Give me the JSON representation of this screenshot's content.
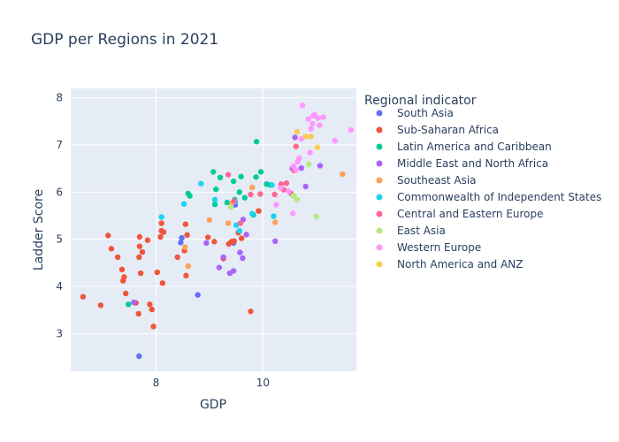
{
  "chart_data": {
    "type": "scatter",
    "title": "GDP per Regions in 2021",
    "xlabel": "GDP",
    "ylabel": "Ladder Score",
    "xlim": [
      6.4,
      11.75
    ],
    "ylim": [
      2.2,
      8.2
    ],
    "x_ticks": [
      8,
      10
    ],
    "y_ticks": [
      3,
      4,
      5,
      6,
      7,
      8
    ],
    "grid": true,
    "legend_title": "Regional indicator",
    "legend_position": "right",
    "series": [
      {
        "name": "South Asia",
        "color": "#636efa",
        "points": [
          [
            7.68,
            2.52
          ],
          [
            8.48,
            5.03
          ],
          [
            8.46,
            4.93
          ],
          [
            8.78,
            3.82
          ],
          [
            9.45,
            4.92
          ],
          [
            9.48,
            5.73
          ]
        ]
      },
      {
        "name": "Sub-Saharan Africa",
        "color": "#ef553b",
        "points": [
          [
            6.63,
            3.78
          ],
          [
            6.96,
            3.6
          ],
          [
            7.1,
            5.08
          ],
          [
            7.16,
            4.8
          ],
          [
            7.28,
            4.62
          ],
          [
            7.36,
            4.36
          ],
          [
            7.38,
            4.12
          ],
          [
            7.4,
            4.2
          ],
          [
            7.43,
            3.85
          ],
          [
            7.62,
            3.65
          ],
          [
            7.67,
            3.42
          ],
          [
            7.68,
            4.62
          ],
          [
            7.69,
            4.85
          ],
          [
            7.69,
            5.05
          ],
          [
            7.71,
            4.28
          ],
          [
            7.74,
            4.73
          ],
          [
            7.84,
            4.98
          ],
          [
            7.88,
            3.62
          ],
          [
            7.92,
            3.51
          ],
          [
            7.95,
            3.15
          ],
          [
            8.02,
            4.3
          ],
          [
            8.08,
            5.05
          ],
          [
            8.1,
            5.34
          ],
          [
            8.1,
            5.18
          ],
          [
            8.12,
            4.07
          ],
          [
            8.14,
            5.15
          ],
          [
            8.4,
            4.62
          ],
          [
            8.53,
            4.76
          ],
          [
            8.55,
            5.32
          ],
          [
            8.56,
            4.23
          ],
          [
            8.58,
            5.09
          ],
          [
            8.97,
            5.04
          ],
          [
            9.09,
            4.95
          ],
          [
            9.26,
            4.59
          ],
          [
            9.36,
            4.9
          ],
          [
            9.41,
            4.95
          ],
          [
            9.46,
            4.96
          ],
          [
            9.54,
            5.14
          ],
          [
            9.6,
            5.02
          ],
          [
            9.77,
            3.47
          ],
          [
            9.92,
            5.6
          ]
        ]
      },
      {
        "name": "Latin America and Caribbean",
        "color": "#00cc96",
        "points": [
          [
            7.48,
            3.62
          ],
          [
            8.6,
            5.97
          ],
          [
            8.63,
            5.92
          ],
          [
            9.07,
            6.43
          ],
          [
            9.1,
            5.74
          ],
          [
            9.12,
            6.06
          ],
          [
            9.2,
            6.31
          ],
          [
            9.33,
            5.78
          ],
          [
            9.45,
            6.23
          ],
          [
            9.47,
            5.84
          ],
          [
            9.56,
            6.0
          ],
          [
            9.59,
            6.33
          ],
          [
            9.66,
            5.88
          ],
          [
            9.82,
            5.52
          ],
          [
            9.87,
            6.32
          ],
          [
            9.88,
            7.07
          ],
          [
            9.96,
            6.43
          ],
          [
            10.07,
            6.17
          ],
          [
            10.14,
            6.15
          ]
        ]
      },
      {
        "name": "Middle East and North Africa",
        "color": "#ab63fa",
        "points": [
          [
            7.58,
            3.66
          ],
          [
            8.94,
            4.92
          ],
          [
            9.18,
            4.4
          ],
          [
            9.26,
            4.62
          ],
          [
            9.38,
            4.28
          ],
          [
            9.45,
            4.33
          ],
          [
            9.57,
            4.72
          ],
          [
            9.62,
            4.6
          ],
          [
            9.63,
            5.42
          ],
          [
            9.69,
            5.1
          ],
          [
            10.23,
            4.96
          ],
          [
            10.55,
            6.5
          ],
          [
            10.6,
            7.16
          ],
          [
            10.72,
            6.51
          ],
          [
            10.8,
            6.12
          ],
          [
            11.07,
            6.56
          ]
        ]
      },
      {
        "name": "Southeast Asia",
        "color": "#ffa15a",
        "points": [
          [
            8.54,
            4.83
          ],
          [
            8.6,
            4.43
          ],
          [
            9.0,
            5.41
          ],
          [
            9.35,
            5.34
          ],
          [
            9.42,
            5.77
          ],
          [
            9.8,
            6.1
          ],
          [
            10.23,
            5.36
          ],
          [
            11.49,
            6.38
          ]
        ]
      },
      {
        "name": "Commonwealth of Independent States",
        "color": "#19d3f3",
        "points": [
          [
            8.1,
            5.47
          ],
          [
            8.52,
            5.75
          ],
          [
            8.84,
            6.18
          ],
          [
            9.1,
            5.84
          ],
          [
            9.48,
            5.8
          ],
          [
            9.5,
            5.3
          ],
          [
            9.56,
            5.18
          ],
          [
            9.8,
            5.54
          ],
          [
            10.2,
            5.49
          ],
          [
            10.17,
            6.15
          ]
        ]
      },
      {
        "name": "Central and Eastern Europe",
        "color": "#ff6692",
        "points": [
          [
            9.35,
            6.37
          ],
          [
            9.46,
            5.81
          ],
          [
            9.58,
            5.34
          ],
          [
            9.77,
            5.95
          ],
          [
            9.95,
            5.96
          ],
          [
            10.22,
            5.95
          ],
          [
            10.34,
            6.17
          ],
          [
            10.39,
            6.05
          ],
          [
            10.44,
            6.19
          ],
          [
            10.53,
            5.97
          ],
          [
            10.58,
            6.46
          ],
          [
            10.62,
            6.97
          ]
        ]
      },
      {
        "name": "East Asia",
        "color": "#b6e880",
        "points": [
          [
            9.4,
            5.68
          ],
          [
            10.57,
            5.92
          ],
          [
            10.58,
            5.93
          ],
          [
            10.64,
            5.84
          ],
          [
            10.86,
            6.59
          ],
          [
            11.0,
            5.48
          ]
        ]
      },
      {
        "name": "Western Europe",
        "color": "#ff97ff",
        "points": [
          [
            10.25,
            5.73
          ],
          [
            10.33,
            6.09
          ],
          [
            10.48,
            6.02
          ],
          [
            10.56,
            5.55
          ],
          [
            10.57,
            6.55
          ],
          [
            10.62,
            6.47
          ],
          [
            10.65,
            6.64
          ],
          [
            10.68,
            6.72
          ],
          [
            10.72,
            7.13
          ],
          [
            10.74,
            7.84
          ],
          [
            10.8,
            7.18
          ],
          [
            10.85,
            7.55
          ],
          [
            10.88,
            6.84
          ],
          [
            10.9,
            7.34
          ],
          [
            10.93,
            7.45
          ],
          [
            10.94,
            7.62
          ],
          [
            10.97,
            7.64
          ],
          [
            11.03,
            7.57
          ],
          [
            11.06,
            7.42
          ],
          [
            11.13,
            7.59
          ],
          [
            11.35,
            7.09
          ],
          [
            11.65,
            7.32
          ]
        ]
      },
      {
        "name": "North America and ANZ",
        "color": "#fecb52",
        "points": [
          [
            10.64,
            7.28
          ],
          [
            10.8,
            7.18
          ],
          [
            10.9,
            7.18
          ],
          [
            11.02,
            6.95
          ]
        ]
      }
    ]
  }
}
